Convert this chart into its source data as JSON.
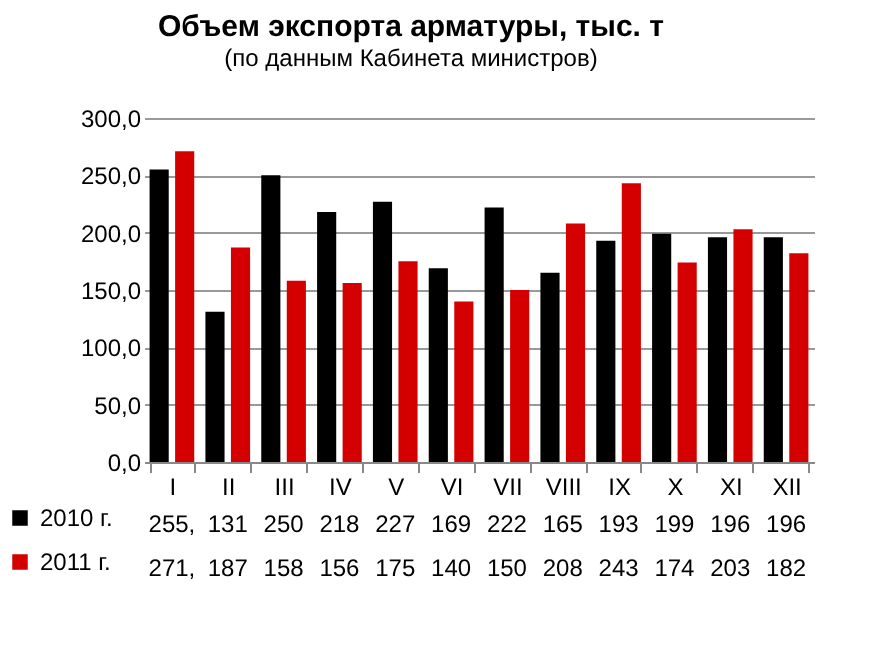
{
  "chart_data": {
    "type": "bar",
    "title": "Объем экспорта арматуры, тыс. т",
    "subtitle": "(по данным Кабинета министров)",
    "categories": [
      "I",
      "II",
      "III",
      "IV",
      "V",
      "VI",
      "VII",
      "VIII",
      "IX",
      "X",
      "XI",
      "XII"
    ],
    "series": [
      {
        "name": "2010 г.",
        "color": "#000000",
        "values": [
          255,
          131,
          250,
          218,
          227,
          169,
          222,
          165,
          193,
          199,
          196,
          196
        ],
        "value_labels": [
          "255,",
          "131",
          "250",
          "218",
          "227",
          "169",
          "222",
          "165",
          "193",
          "199",
          "196",
          "196"
        ]
      },
      {
        "name": "2011 г.",
        "color": "#d40000",
        "values": [
          271,
          187,
          158,
          156,
          175,
          140,
          150,
          208,
          243,
          174,
          203,
          182
        ],
        "value_labels": [
          "271,",
          "187",
          "158",
          "156",
          "175",
          "140",
          "150",
          "208",
          "243",
          "174",
          "203",
          "182"
        ]
      }
    ],
    "ylim": [
      0,
      300
    ],
    "yticks": [
      {
        "value": 0,
        "label": "0,0"
      },
      {
        "value": 50,
        "label": "50,0"
      },
      {
        "value": 100,
        "label": "100,0"
      },
      {
        "value": 150,
        "label": "150,0"
      },
      {
        "value": 200,
        "label": "200,0"
      },
      {
        "value": 250,
        "label": "250,0"
      },
      {
        "value": 300,
        "label": "300,0"
      }
    ],
    "grid": "y",
    "legend": "bottom"
  }
}
